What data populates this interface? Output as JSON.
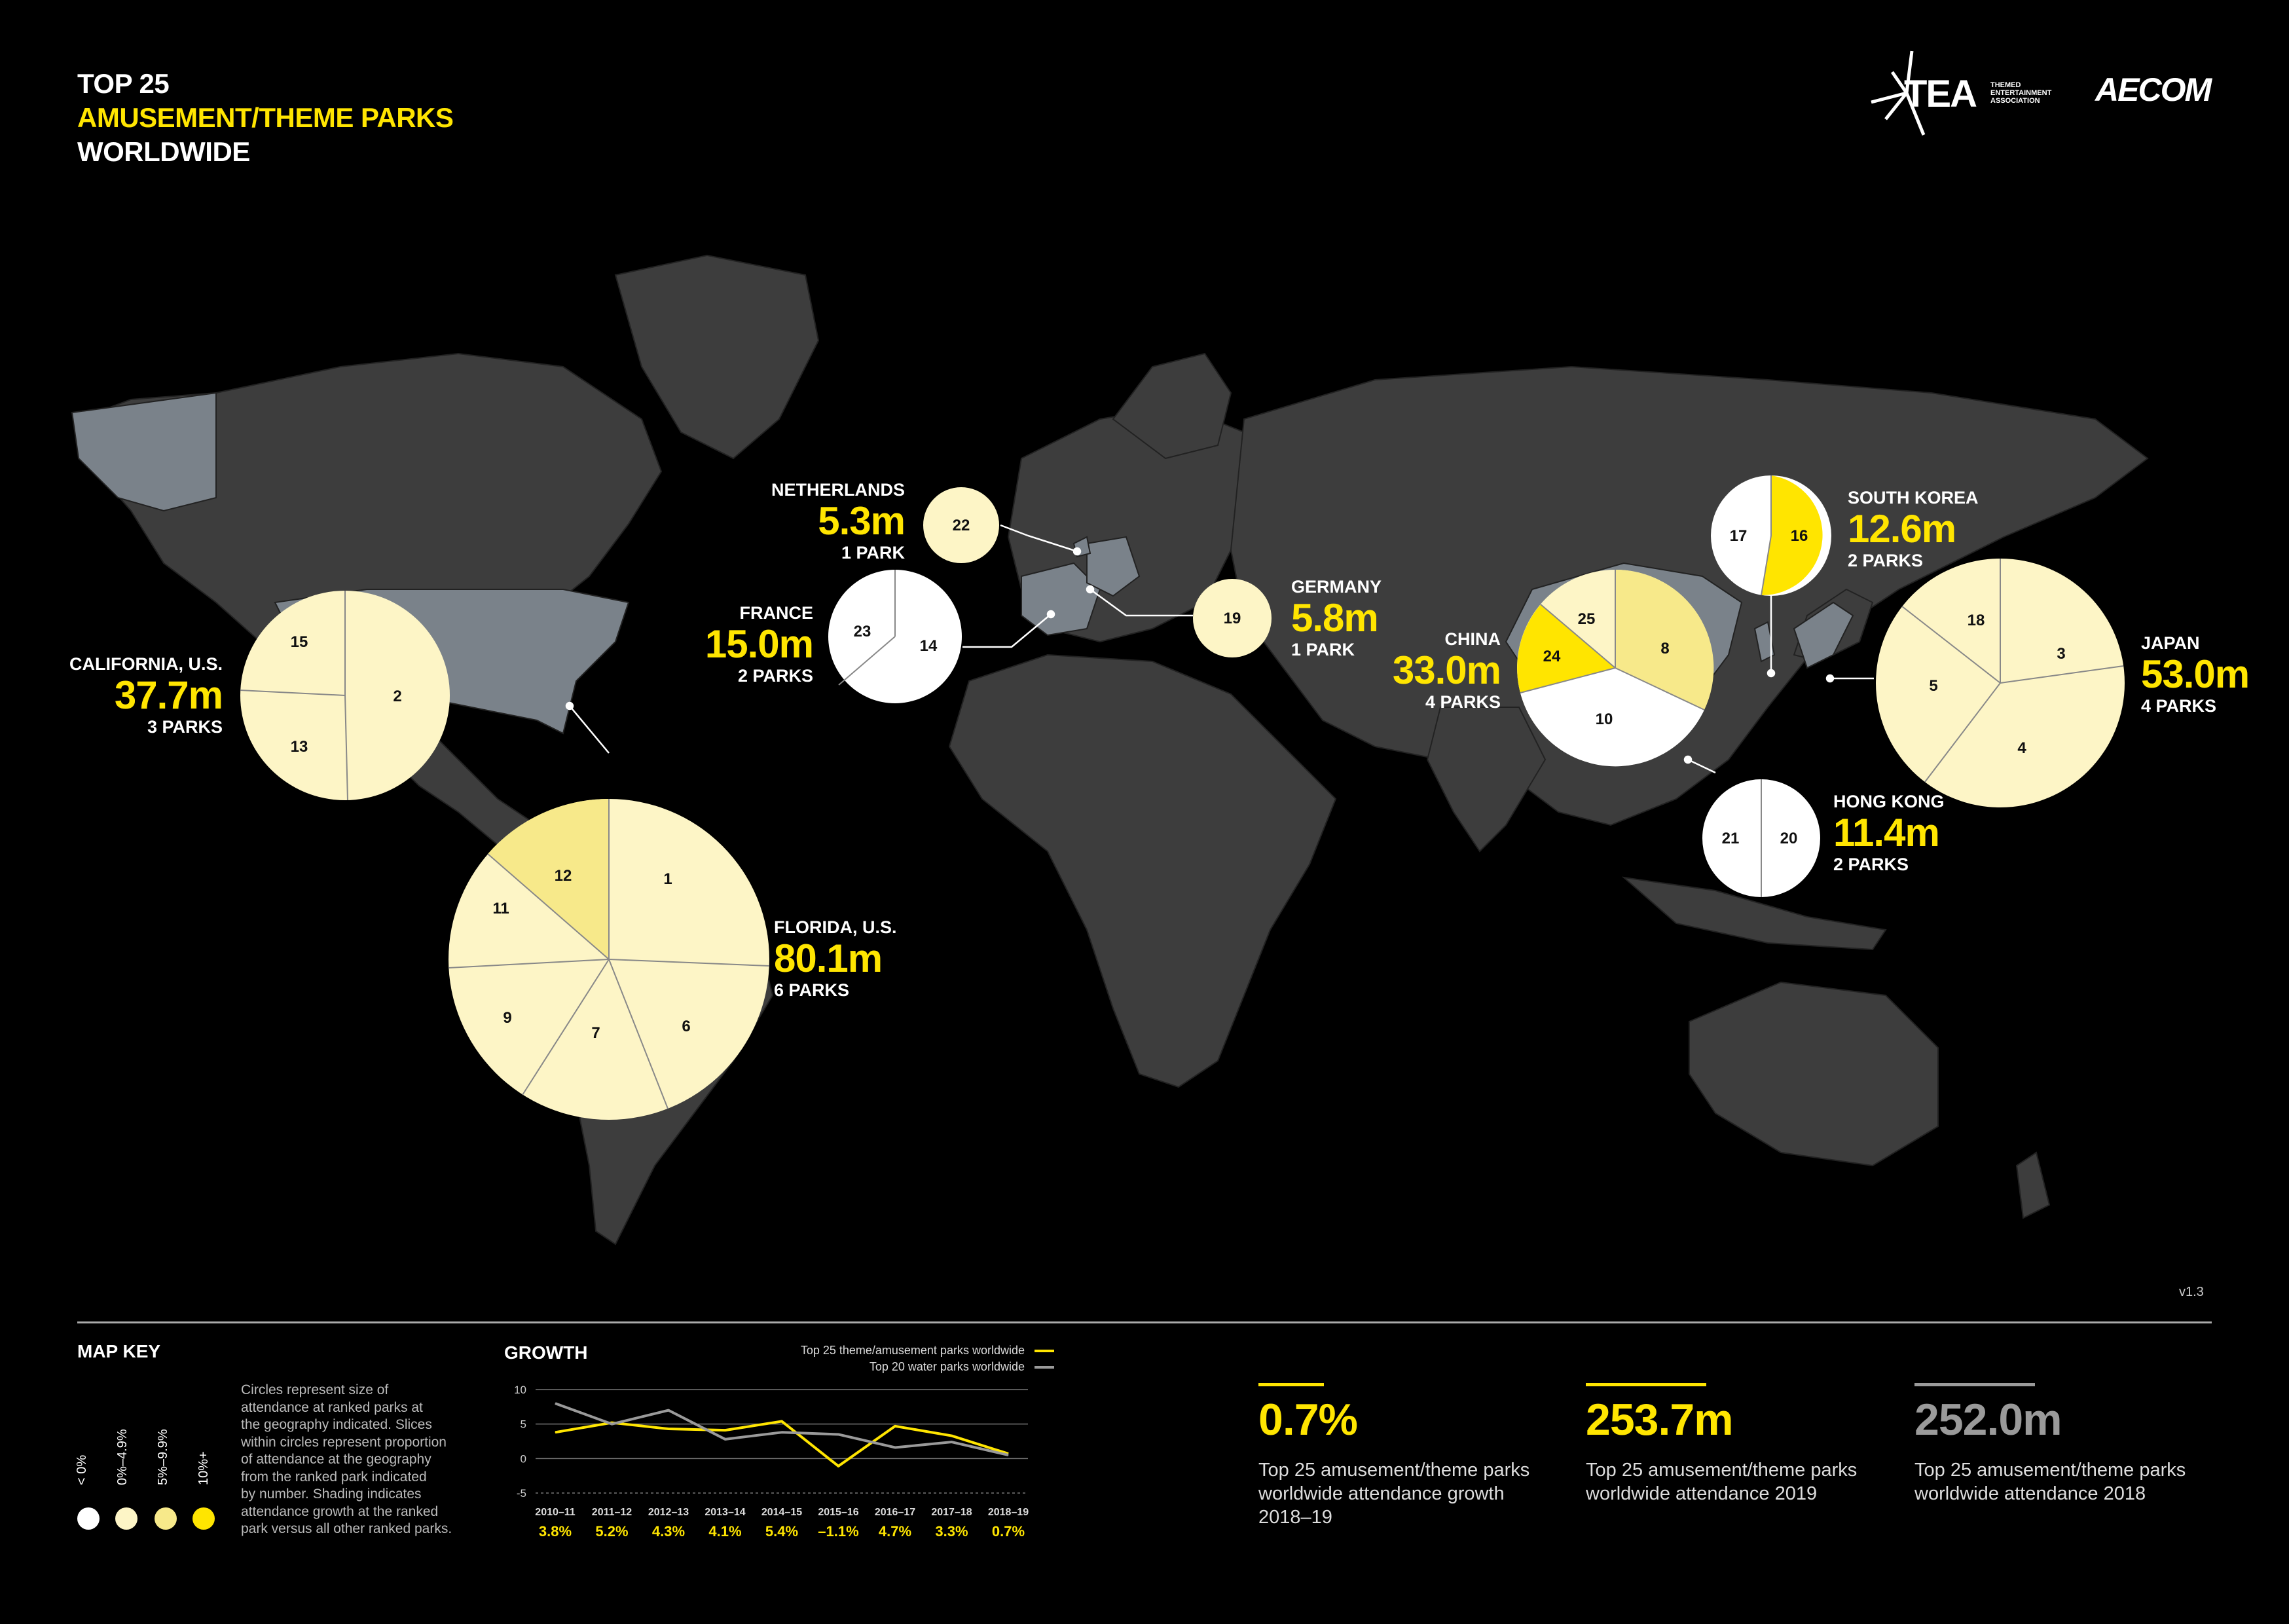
{
  "header": {
    "line1": "TOP 25",
    "line2": "AMUSEMENT/THEME PARKS",
    "line3": "WORLDWIDE"
  },
  "logos": {
    "tea": "TEA",
    "tea_sub": [
      "THEMED",
      "ENTERTAINMENT",
      "ASSOCIATION"
    ],
    "aecom": "AECOM"
  },
  "colors": {
    "background": "#000000",
    "land": "#3d3d3d",
    "land_highlight": "#7a828a",
    "growth_0_4": "#fdf5c6",
    "growth_5_9": "#f7e98a",
    "growth_10": "#ffe500",
    "growth_neg": "#ffffff"
  },
  "regions": {
    "california": {
      "name": "CALIFORNIA, U.S.",
      "value": "37.7m",
      "parks": "3 PARKS",
      "slices": [
        "2",
        "13",
        "15"
      ]
    },
    "florida": {
      "name": "FLORIDA, U.S.",
      "value": "80.1m",
      "parks": "6 PARKS",
      "slices": [
        "1",
        "6",
        "7",
        "9",
        "11",
        "12"
      ]
    },
    "netherlands": {
      "name": "NETHERLANDS",
      "value": "5.3m",
      "parks": "1 PARK",
      "slices": [
        "22"
      ]
    },
    "france": {
      "name": "FRANCE",
      "value": "15.0m",
      "parks": "2 PARKS",
      "slices": [
        "14",
        "23"
      ]
    },
    "germany": {
      "name": "GERMANY",
      "value": "5.8m",
      "parks": "1 PARK",
      "slices": [
        "19"
      ]
    },
    "china": {
      "name": "CHINA",
      "value": "33.0m",
      "parks": "4 PARKS",
      "slices": [
        "8",
        "10",
        "24",
        "25"
      ]
    },
    "south_korea": {
      "name": "SOUTH KOREA",
      "value": "12.6m",
      "parks": "2 PARKS",
      "slices": [
        "16",
        "17"
      ]
    },
    "japan": {
      "name": "JAPAN",
      "value": "53.0m",
      "parks": "4 PARKS",
      "slices": [
        "3",
        "4",
        "5",
        "18"
      ]
    },
    "hong_kong": {
      "name": "HONG KONG",
      "value": "11.4m",
      "parks": "2 PARKS",
      "slices": [
        "20",
        "21"
      ]
    }
  },
  "version": "v1.3",
  "map_key": {
    "title": "MAP KEY",
    "legend": [
      "< 0%",
      "0%–4.9%",
      "5%–9.9%",
      "10%+"
    ],
    "description": [
      "Circles represent size of",
      "attendance at ranked parks at",
      "the geography indicated. Slices",
      "within circles represent proportion",
      "of attendance at the geography",
      "from the ranked park indicated",
      "by number. Shading indicates",
      "attendance growth at the ranked",
      "park versus all other ranked parks."
    ]
  },
  "growth": {
    "title": "GROWTH",
    "legend_theme": "Top 25 theme/amusement parks worldwide",
    "legend_water": "Top 20 water parks worldwide"
  },
  "chart_data": {
    "type": "line",
    "title": "GROWTH",
    "categories": [
      "2010–11",
      "2011–12",
      "2012–13",
      "2013–14",
      "2014–15",
      "2015–16",
      "2016–17",
      "2017–18",
      "2018–19"
    ],
    "series": [
      {
        "name": "Top 25 theme/amusement parks worldwide",
        "values": [
          3.8,
          5.2,
          4.3,
          4.1,
          5.4,
          -1.1,
          4.7,
          3.3,
          0.7
        ],
        "color": "#ffe500"
      },
      {
        "name": "Top 20 water parks worldwide",
        "values": [
          8.0,
          5.0,
          7.0,
          2.8,
          3.8,
          3.5,
          1.6,
          2.4,
          0.5
        ],
        "color": "#9a9a9a"
      }
    ],
    "value_labels": [
      "3.8%",
      "5.2%",
      "4.3%",
      "4.1%",
      "5.4%",
      "–1.1%",
      "4.7%",
      "3.3%",
      "0.7%"
    ],
    "yticks": [
      "10",
      "5",
      "0",
      "-5"
    ],
    "ylim": [
      -5,
      10
    ],
    "grid": true,
    "legend_position": "top-right"
  },
  "stats": [
    {
      "value": "0.7%",
      "desc": [
        "Top 25 amusement/theme parks",
        "worldwide attendance growth",
        "2018–19"
      ],
      "color": "#ffe500"
    },
    {
      "value": "253.7m",
      "desc": [
        "Top 25 amusement/theme parks",
        "worldwide attendance 2019"
      ],
      "color": "#ffe500"
    },
    {
      "value": "252.0m",
      "desc": [
        "Top 25 amusement/theme parks",
        "worldwide attendance 2018"
      ],
      "color": "#9a9a9a"
    }
  ]
}
